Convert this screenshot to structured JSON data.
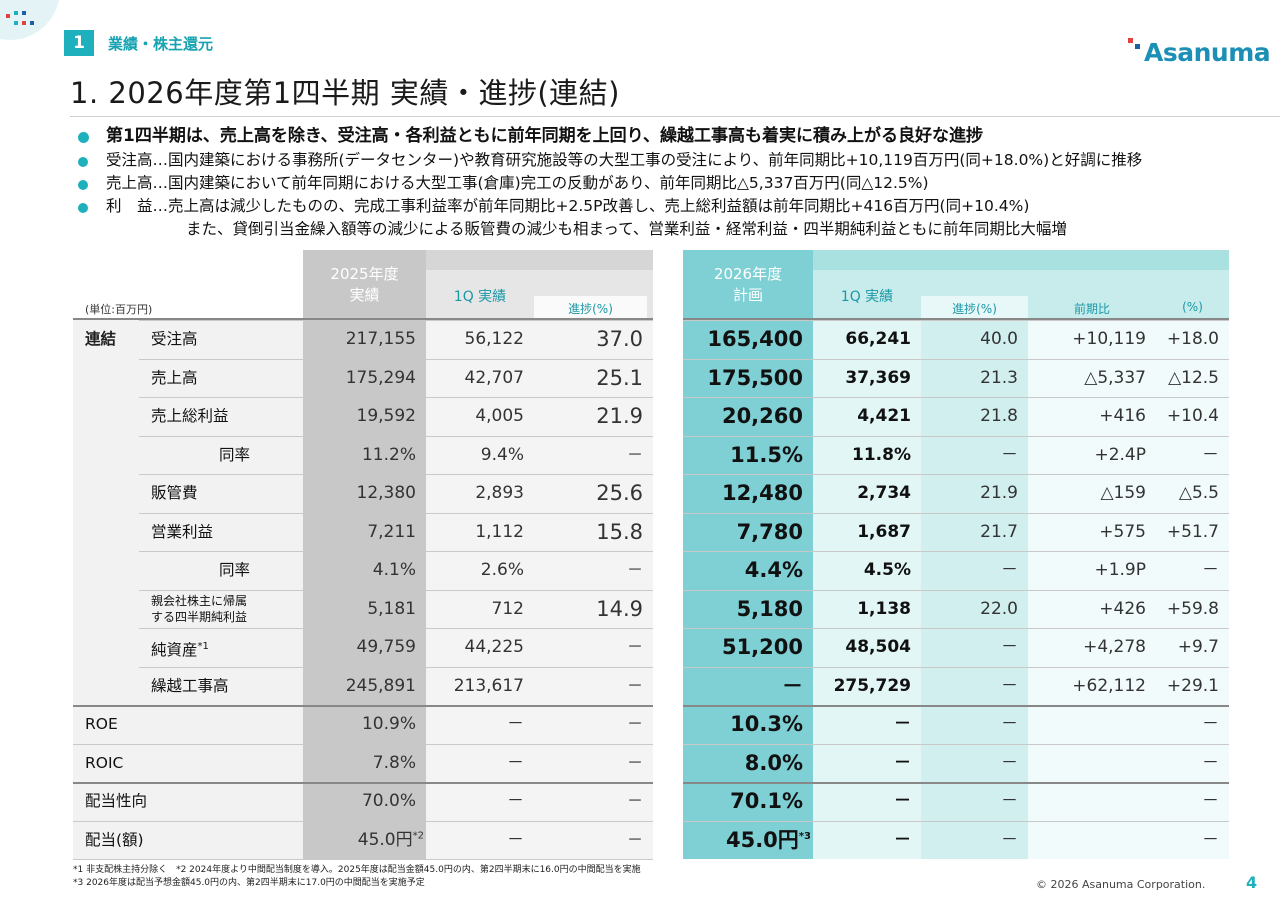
{
  "section": {
    "number": "1",
    "label": "業績・株主還元"
  },
  "brand": {
    "logo_text": "Asanuma",
    "accent": "#1fb0bd"
  },
  "title": "1. 2026年度第1四半期 実績・進捗(連結)",
  "bullets": [
    {
      "text": "第1四半期は、売上高を除き、受注高・各利益ともに前年同期を上回り、繰越工事高も着実に積み上がる良好な進捗",
      "big": true
    },
    {
      "text": "受注高…国内建築における事務所(データセンター)や教育研究施設等の大型工事の受注により、前年同期比+10,119百万円(同+18.0%)と好調に推移"
    },
    {
      "text": "売上高…国内建築において前年同期における大型工事(倉庫)完工の反動があり、前年同期比△5,337百万円(同△12.5%)"
    },
    {
      "text": "利　益…売上高は減少したものの、完成工事利益率が前年同期比+2.5P改善し、売上総利益額は前年同期比+416百万円(同+10.4%)",
      "cont": "また、貸倒引当金繰入額等の減少による販管費の減少も相まって、営業利益・経常利益・四半期純利益ともに前年同期比大幅増"
    }
  ],
  "table": {
    "unit": "(単位:百万円)",
    "headers": {
      "fy2025": "2025年度\n実績",
      "q1_2025": "1Q 実績",
      "progress_2025": "進捗(%)",
      "fy2026": "2026年度\n計画",
      "q1_2026": "1Q 実績",
      "progress_2026": "進捗(%)",
      "yoy": "前期比",
      "yoy_pct": "(%)"
    },
    "group_label": "連結",
    "rows": [
      {
        "label": "受注高",
        "fy25": "217,155",
        "q1_25": "56,122",
        "p25": "37.0",
        "plan26": "165,400",
        "q1_26": "66,241",
        "p26": "40.0",
        "yoy": "+10,119",
        "yoyp": "+18.0"
      },
      {
        "label": "売上高",
        "fy25": "175,294",
        "q1_25": "42,707",
        "p25": "25.1",
        "plan26": "175,500",
        "q1_26": "37,369",
        "p26": "21.3",
        "yoy": "△5,337",
        "yoyp": "△12.5"
      },
      {
        "label": "売上総利益",
        "fy25": "19,592",
        "q1_25": "4,005",
        "p25": "21.9",
        "plan26": "20,260",
        "q1_26": "4,421",
        "p26": "21.8",
        "yoy": "+416",
        "yoyp": "+10.4"
      },
      {
        "label": "同率",
        "fy25": "11.2%",
        "q1_25": "9.4%",
        "p25": "－",
        "plan26": "11.5%",
        "q1_26": "11.8%",
        "p26": "－",
        "yoy": "+2.4P",
        "yoyp": "－"
      },
      {
        "label": "販管費",
        "fy25": "12,380",
        "q1_25": "2,893",
        "p25": "25.6",
        "plan26": "12,480",
        "q1_26": "2,734",
        "p26": "21.9",
        "yoy": "△159",
        "yoyp": "△5.5"
      },
      {
        "label": "営業利益",
        "fy25": "7,211",
        "q1_25": "1,112",
        "p25": "15.8",
        "plan26": "7,780",
        "q1_26": "1,687",
        "p26": "21.7",
        "yoy": "+575",
        "yoyp": "+51.7"
      },
      {
        "label": "同率",
        "fy25": "4.1%",
        "q1_25": "2.6%",
        "p25": "－",
        "plan26": "4.4%",
        "q1_26": "4.5%",
        "p26": "－",
        "yoy": "+1.9P",
        "yoyp": "－"
      },
      {
        "label": "親会社株主に帰属\nする四半期純利益",
        "fy25": "5,181",
        "q1_25": "712",
        "p25": "14.9",
        "plan26": "5,180",
        "q1_26": "1,138",
        "p26": "22.0",
        "yoy": "+426",
        "yoyp": "+59.8"
      },
      {
        "label": "純資産",
        "sup": "*1",
        "fy25": "49,759",
        "q1_25": "44,225",
        "p25": "－",
        "plan26": "51,200",
        "q1_26": "48,504",
        "p26": "－",
        "yoy": "+4,278",
        "yoyp": "+9.7"
      },
      {
        "label": "繰越工事高",
        "fy25": "245,891",
        "q1_25": "213,617",
        "p25": "－",
        "plan26": "－",
        "q1_26": "275,729",
        "p26": "－",
        "yoy": "+62,112",
        "yoyp": "+29.1"
      },
      {
        "label": "ROE",
        "fy25": "10.9%",
        "q1_25": "－",
        "p25": "－",
        "plan26": "10.3%",
        "q1_26": "－",
        "p26": "－",
        "yoy": "",
        "yoyp": "－"
      },
      {
        "label": "ROIC",
        "fy25": "7.8%",
        "q1_25": "－",
        "p25": "－",
        "plan26": "8.0%",
        "q1_26": "－",
        "p26": "－",
        "yoy": "",
        "yoyp": "－"
      },
      {
        "label": "配当性向",
        "fy25": "70.0%",
        "q1_25": "－",
        "p25": "－",
        "plan26": "70.1%",
        "q1_26": "－",
        "p26": "－",
        "yoy": "",
        "yoyp": "－"
      },
      {
        "label": "配当(額)",
        "fy25": "45.0円",
        "fy25_sup": "*2",
        "q1_25": "－",
        "p25": "－",
        "plan26": "45.0円",
        "plan26_sup": "*3",
        "q1_26": "－",
        "p26": "－",
        "yoy": "",
        "yoyp": "－"
      }
    ]
  },
  "footnotes": [
    "*1 非支配株主持分除く　*2 2024年度より中間配当制度を導入。2025年度は配当金額45.0円の内、第2四半期末に16.0円の中間配当を実施",
    "*3 2026年度は配当予想金額45.0円の内、第2四半期末に17.0円の中間配当を実施予定"
  ],
  "copyright": "© 2026 Asanuma Corporation.",
  "page_number": "4",
  "colors": {
    "gray_col": "#c8c8c8",
    "teal_col": "#7fd0d4",
    "light_teal": "#e3f6f6",
    "light_teal2": "#d2efef"
  }
}
